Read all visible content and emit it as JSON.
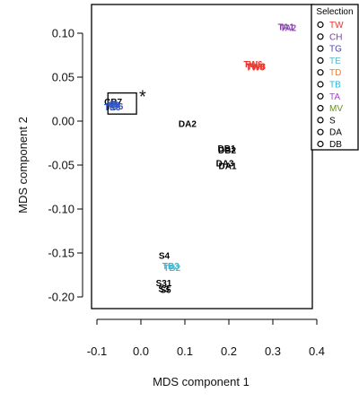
{
  "chart_data": {
    "type": "scatter",
    "xlabel": "MDS component 1",
    "ylabel": "MDS component 2",
    "xlim": [
      -0.1,
      0.4
    ],
    "ylim": [
      -0.2,
      0.1
    ],
    "x_ticks": [
      "-0.1",
      "0.0",
      "0.1",
      "0.2",
      "0.3",
      "0.4"
    ],
    "y_ticks": [
      "0.10",
      "0.05",
      "0.00",
      "-0.05",
      "-0.10",
      "-0.15",
      "-0.20"
    ],
    "legend": {
      "title": "Selection",
      "placement": "top-right",
      "entries": [
        {
          "label": "TW",
          "color": "#e8382f"
        },
        {
          "label": "CH",
          "color": "#7b3fa0"
        },
        {
          "label": "TG",
          "color": "#4a46a8"
        },
        {
          "label": "TE",
          "color": "#5ab7c4"
        },
        {
          "label": "TD",
          "color": "#f07e1e"
        },
        {
          "label": "TB",
          "color": "#2bb5d9"
        },
        {
          "label": "TA",
          "color": "#9b4dbf"
        },
        {
          "label": "MV",
          "color": "#6b8e23"
        },
        {
          "label": "S",
          "color": "#000000"
        },
        {
          "label": "DA",
          "color": "#000000"
        },
        {
          "label": "DB",
          "color": "#000000"
        }
      ]
    },
    "points": [
      {
        "label": "TA1",
        "x": 0.33,
        "y": 0.107,
        "color": "#7b3fa0"
      },
      {
        "label": "TA2",
        "x": 0.335,
        "y": 0.106,
        "color": "#9b4dbf"
      },
      {
        "label": "TW6",
        "x": 0.255,
        "y": 0.065,
        "color": "#e8382f"
      },
      {
        "label": "TW8",
        "x": 0.26,
        "y": 0.061,
        "color": "#e8382f"
      },
      {
        "label": "TW3",
        "x": 0.262,
        "y": 0.062,
        "color": "#e8382f"
      },
      {
        "label": "CB7",
        "x": -0.063,
        "y": 0.022,
        "color": "#000000"
      },
      {
        "label": "TG6",
        "x": -0.06,
        "y": 0.017,
        "color": "#4a46a8"
      },
      {
        "label": "TE3",
        "x": -0.065,
        "y": 0.016,
        "color": "#2b56c9"
      },
      {
        "label": "DA2",
        "x": 0.106,
        "y": -0.003,
        "color": "#000000"
      },
      {
        "label": "DB1",
        "x": 0.195,
        "y": -0.031,
        "color": "#000000"
      },
      {
        "label": "DB2",
        "x": 0.196,
        "y": -0.033,
        "color": "#000000"
      },
      {
        "label": "DA3",
        "x": 0.191,
        "y": -0.048,
        "color": "#000000"
      },
      {
        "label": "DA1",
        "x": 0.197,
        "y": -0.051,
        "color": "#000000"
      },
      {
        "label": "S4",
        "x": 0.053,
        "y": -0.153,
        "color": "#000000"
      },
      {
        "label": "TB3",
        "x": 0.068,
        "y": -0.165,
        "color": "#2bb5d9"
      },
      {
        "label": "TB2",
        "x": 0.071,
        "y": -0.167,
        "color": "#5ab7c4"
      },
      {
        "label": "S31",
        "x": 0.052,
        "y": -0.184,
        "color": "#000000"
      },
      {
        "label": "S3",
        "x": 0.052,
        "y": -0.191,
        "color": "#000000"
      },
      {
        "label": "S5",
        "x": 0.056,
        "y": -0.192,
        "color": "#000000"
      }
    ],
    "annotations": [
      {
        "text": "*",
        "x": -0.004,
        "y": 0.027
      }
    ],
    "highlight_box": {
      "x0": -0.075,
      "x1": -0.01,
      "y0": 0.008,
      "y1": 0.032
    }
  }
}
